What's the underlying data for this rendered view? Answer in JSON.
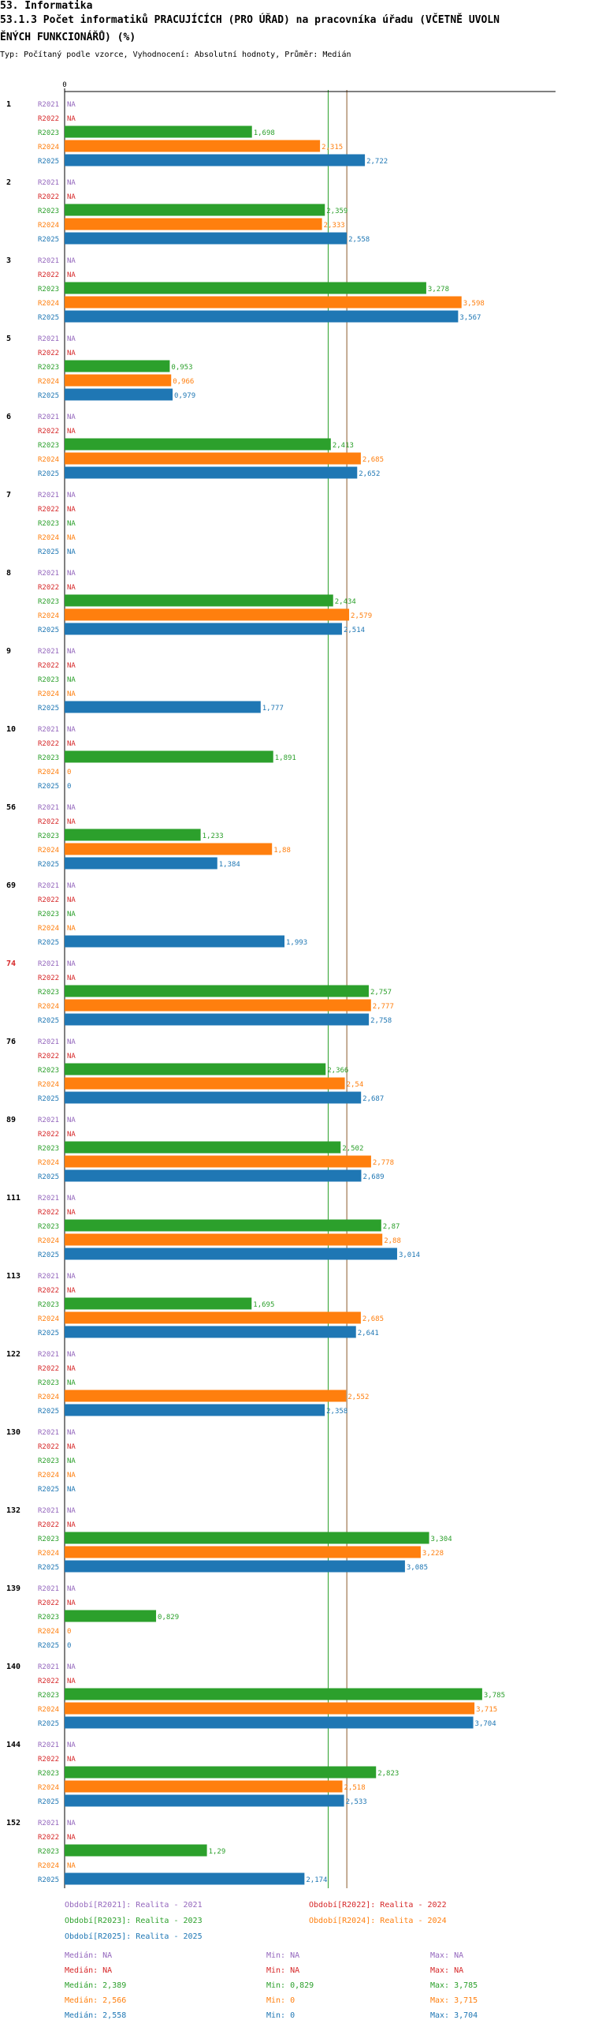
{
  "header": {
    "section": "53. Informatika",
    "title_line1": "53.1.3 Počet informatiků PRACUJÍCÍCH (PRO ÚŘAD) na pracovníka úřadu (VČETNĚ UVOLN",
    "title_line2": "ĚNÝCH FUNKCIONÁŘŮ) (%)",
    "subtitle": "Typ: Počítaný podle vzorce, Vyhodnocení: Absolutní hodnoty, Průměr: Medián"
  },
  "colors": {
    "R2021": "#9467bd",
    "R2022": "#d62728",
    "R2023": "#2ca02c",
    "R2024": "#ff7f0e",
    "R2025": "#1f77b4",
    "group_label": "#000000",
    "group_label_highlight": "#d62728",
    "axis": "#000000",
    "median_line": "#8b5a2b"
  },
  "chart_data": {
    "type": "bar",
    "orientation": "horizontal",
    "axis_zero_label": "0",
    "x_range": [
      0,
      4.1
    ],
    "na_label": "NA",
    "zero_label": "0",
    "median_lines": [
      2.389,
      2.558
    ],
    "series_names": [
      "R2021",
      "R2022",
      "R2023",
      "R2024",
      "R2025"
    ],
    "groups": [
      {
        "label": "1",
        "highlight": false,
        "values": [
          null,
          null,
          1.698,
          2.315,
          2.722
        ],
        "labels": [
          "NA",
          "NA",
          "1,698",
          "2,315",
          "2,722"
        ]
      },
      {
        "label": "2",
        "highlight": false,
        "values": [
          null,
          null,
          2.359,
          2.333,
          2.558
        ],
        "labels": [
          "NA",
          "NA",
          "2,359",
          "2,333",
          "2,558"
        ]
      },
      {
        "label": "3",
        "highlight": false,
        "values": [
          null,
          null,
          3.278,
          3.598,
          3.567
        ],
        "labels": [
          "NA",
          "NA",
          "3,278",
          "3,598",
          "3,567"
        ]
      },
      {
        "label": "5",
        "highlight": false,
        "values": [
          null,
          null,
          0.953,
          0.966,
          0.979
        ],
        "labels": [
          "NA",
          "NA",
          "0,953",
          "0,966",
          "0,979"
        ]
      },
      {
        "label": "6",
        "highlight": false,
        "values": [
          null,
          null,
          2.413,
          2.685,
          2.652
        ],
        "labels": [
          "NA",
          "NA",
          "2,413",
          "2,685",
          "2,652"
        ]
      },
      {
        "label": "7",
        "highlight": false,
        "values": [
          null,
          null,
          null,
          null,
          null
        ],
        "labels": [
          "NA",
          "NA",
          "NA",
          "NA",
          "NA"
        ]
      },
      {
        "label": "8",
        "highlight": false,
        "values": [
          null,
          null,
          2.434,
          2.579,
          2.514
        ],
        "labels": [
          "NA",
          "NA",
          "2,434",
          "2,579",
          "2,514"
        ]
      },
      {
        "label": "9",
        "highlight": false,
        "values": [
          null,
          null,
          null,
          null,
          1.777
        ],
        "labels": [
          "NA",
          "NA",
          "NA",
          "NA",
          "1,777"
        ]
      },
      {
        "label": "10",
        "highlight": false,
        "values": [
          null,
          null,
          1.891,
          0,
          0
        ],
        "labels": [
          "NA",
          "NA",
          "1,891",
          "0",
          "0"
        ]
      },
      {
        "label": "56",
        "highlight": false,
        "values": [
          null,
          null,
          1.233,
          1.88,
          1.384
        ],
        "labels": [
          "NA",
          "NA",
          "1,233",
          "1,88",
          "1,384"
        ]
      },
      {
        "label": "69",
        "highlight": false,
        "values": [
          null,
          null,
          null,
          null,
          1.993
        ],
        "labels": [
          "NA",
          "NA",
          "NA",
          "NA",
          "1,993"
        ]
      },
      {
        "label": "74",
        "highlight": true,
        "values": [
          null,
          null,
          2.757,
          2.777,
          2.758
        ],
        "labels": [
          "NA",
          "NA",
          "2,757",
          "2,777",
          "2,758"
        ]
      },
      {
        "label": "76",
        "highlight": false,
        "values": [
          null,
          null,
          2.366,
          2.54,
          2.687
        ],
        "labels": [
          "NA",
          "NA",
          "2,366",
          "2,54",
          "2,687"
        ]
      },
      {
        "label": "89",
        "highlight": false,
        "values": [
          null,
          null,
          2.502,
          2.778,
          2.689
        ],
        "labels": [
          "NA",
          "NA",
          "2,502",
          "2,778",
          "2,689"
        ]
      },
      {
        "label": "111",
        "highlight": false,
        "values": [
          null,
          null,
          2.87,
          2.88,
          3.014
        ],
        "labels": [
          "NA",
          "NA",
          "2,87",
          "2,88",
          "3,014"
        ]
      },
      {
        "label": "113",
        "highlight": false,
        "values": [
          null,
          null,
          1.695,
          2.685,
          2.641
        ],
        "labels": [
          "NA",
          "NA",
          "1,695",
          "2,685",
          "2,641"
        ]
      },
      {
        "label": "122",
        "highlight": false,
        "values": [
          null,
          null,
          null,
          2.552,
          2.358
        ],
        "labels": [
          "NA",
          "NA",
          "NA",
          "2,552",
          "2,358"
        ]
      },
      {
        "label": "130",
        "highlight": false,
        "values": [
          null,
          null,
          null,
          null,
          null
        ],
        "labels": [
          "NA",
          "NA",
          "NA",
          "NA",
          "NA"
        ]
      },
      {
        "label": "132",
        "highlight": false,
        "values": [
          null,
          null,
          3.304,
          3.228,
          3.085
        ],
        "labels": [
          "NA",
          "NA",
          "3,304",
          "3,228",
          "3,085"
        ]
      },
      {
        "label": "139",
        "highlight": false,
        "values": [
          null,
          null,
          0.829,
          0,
          0
        ],
        "labels": [
          "NA",
          "NA",
          "0,829",
          "0",
          "0"
        ]
      },
      {
        "label": "140",
        "highlight": false,
        "values": [
          null,
          null,
          3.785,
          3.715,
          3.704
        ],
        "labels": [
          "NA",
          "NA",
          "3,785",
          "3,715",
          "3,704"
        ]
      },
      {
        "label": "144",
        "highlight": false,
        "values": [
          null,
          null,
          2.823,
          2.518,
          2.533
        ],
        "labels": [
          "NA",
          "NA",
          "2,823",
          "2,518",
          "2,533"
        ]
      },
      {
        "label": "152",
        "highlight": false,
        "values": [
          null,
          null,
          1.29,
          null,
          2.174
        ],
        "labels": [
          "NA",
          "NA",
          "1,29",
          "NA",
          "2,174"
        ]
      }
    ]
  },
  "legend": {
    "periods": [
      {
        "series": "R2021",
        "text": "Období[R2021]: Realita - 2021"
      },
      {
        "series": "R2022",
        "text": "Období[R2022]: Realita - 2022"
      },
      {
        "series": "R2023",
        "text": "Období[R2023]: Realita - 2023"
      },
      {
        "series": "R2024",
        "text": "Období[R2024]: Realita - 2024"
      },
      {
        "series": "R2025",
        "text": "Období[R2025]: Realita - 2025"
      }
    ],
    "stats": [
      {
        "series": "R2021",
        "median": "Medián: NA",
        "min": "Min: NA",
        "max": "Max: NA"
      },
      {
        "series": "R2022",
        "median": "Medián: NA",
        "min": "Min: NA",
        "max": "Max: NA"
      },
      {
        "series": "R2023",
        "median": "Medián: 2,389",
        "min": "Min: 0,829",
        "max": "Max: 3,785"
      },
      {
        "series": "R2024",
        "median": "Medián: 2,566",
        "min": "Min: 0",
        "max": "Max: 3,715"
      },
      {
        "series": "R2025",
        "median": "Medián: 2,558",
        "min": "Min: 0",
        "max": "Max: 3,704"
      }
    ]
  }
}
